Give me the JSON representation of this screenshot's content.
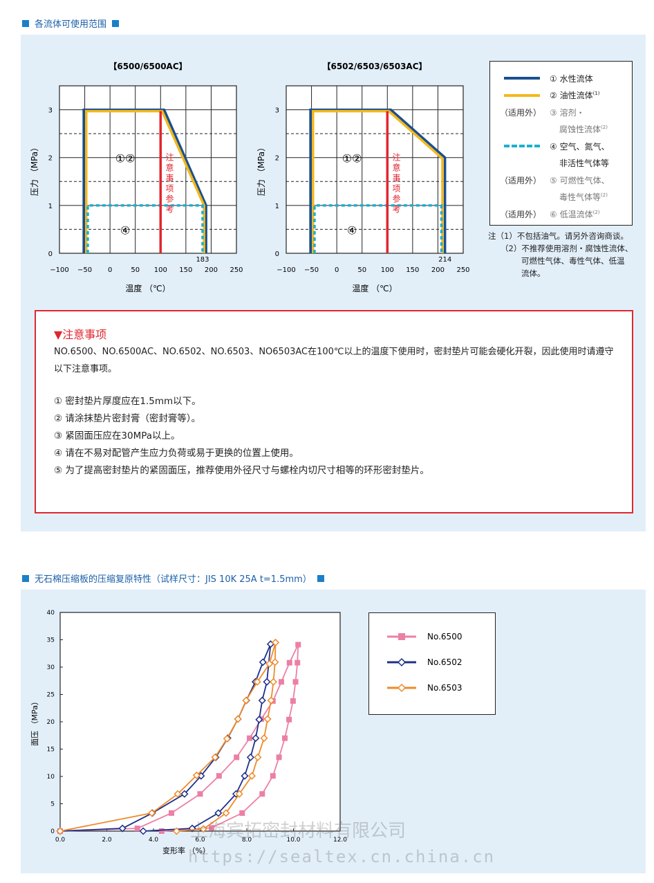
{
  "section1": {
    "title": "各流体可使用范围"
  },
  "legend": {
    "items": [
      {
        "prefix": "",
        "label": "① 水性流体",
        "sup": "",
        "style": "solid",
        "color": "#1a4f8f"
      },
      {
        "prefix": "",
        "label": "② 油性流体",
        "sup": "(1)",
        "style": "solid",
        "color": "#f2b81c"
      },
      {
        "prefix": "（适用外）",
        "label": "③ 溶剂・",
        "sup": "",
        "style": "none"
      },
      {
        "prefix": "",
        "label": "腐蚀性流体",
        "sup": "(2)",
        "style": "none"
      },
      {
        "prefix": "",
        "label": "④ 空气、氮气、",
        "sup": "",
        "style": "dashed",
        "color": "#1cb0cf"
      },
      {
        "prefix": "",
        "label": "非活性气体等",
        "sup": "",
        "style": "none"
      },
      {
        "prefix": "（适用外）",
        "label": "⑤ 可燃性气体、",
        "sup": "",
        "style": "none"
      },
      {
        "prefix": "",
        "label": "毒性气体等",
        "sup": "(2)",
        "style": "none"
      },
      {
        "prefix": "（适用外）",
        "label": "⑥ 低温流体",
        "sup": "(2)",
        "style": "none"
      }
    ]
  },
  "notes": {
    "n1": "注（1）不包括油气。请另外咨询商谈。",
    "n2a": "（2）不推荐使用溶剂・腐蚀性流体、",
    "n2b": "可燃性气体、毒性气体、低温",
    "n2c": "流体。"
  },
  "notice": {
    "title": "▼注意事项",
    "intro": "NO.6500、NO.6500AC、NO.6502、NO.6503、NO6503AC在100℃以上的温度下使用时，密封垫片可能会硬化开裂，因此使用时请遵守以下注意事项。",
    "items": [
      "① 密封垫片厚度应在1.5mm以下。",
      "② 请涂抹垫片密封膏（密封膏等）。",
      "③ 紧固面压应在30MPa以上。",
      "④ 请在不易对配管产生应力负荷或易于更换的位置上使用。",
      "⑤ 为了提高密封垫片的紧固面压，推荐使用外径尺寸与螺栓内切尺寸相等的环形密封垫片。"
    ]
  },
  "section2": {
    "title": "无石棉压缩板的压缩复原特性（试样尺寸：JIS 10K 25A t=1.5mm）"
  },
  "watermark": {
    "cn": "上海宾拓密封材料有限公司",
    "url": "https://sealtex.cn.china.cn"
  },
  "chart_data": [
    {
      "type": "line",
      "title": "【6500/6500AC】",
      "xlabel": "温度 （℃）",
      "ylabel": "压力 （MPa）",
      "xlim": [
        -100,
        250
      ],
      "ylim": [
        0,
        3.5
      ],
      "xticks": [
        -100,
        -50,
        0,
        50,
        100,
        150,
        200,
        250
      ],
      "yticks": [
        0,
        1,
        2,
        3
      ],
      "grid": true,
      "annotations": {
        "region12": "①②",
        "region4": "④",
        "caution": "注意事项参考",
        "end_value": "183"
      },
      "caution_line": {
        "x": 100,
        "color": "#e0262e"
      },
      "series": [
        {
          "id": "water",
          "color": "#1a4f8f",
          "points": [
            [
              -52,
              0
            ],
            [
              -52,
              3
            ],
            [
              107,
              3
            ],
            [
              190,
              1
            ],
            [
              190,
              0
            ]
          ]
        },
        {
          "id": "oil",
          "color": "#f2b81c",
          "points": [
            [
              -47,
              0
            ],
            [
              -47,
              2.97
            ],
            [
              103,
              2.97
            ],
            [
              186,
              1
            ],
            [
              186,
              0
            ]
          ]
        },
        {
          "id": "gas",
          "color": "#1cb0cf",
          "dashed": true,
          "points": [
            [
              -44,
              0
            ],
            [
              -44,
              1
            ],
            [
              183,
              1
            ],
            [
              183,
              0
            ]
          ]
        }
      ]
    },
    {
      "type": "line",
      "title": "【6502/6503/6503AC】",
      "xlabel": "温度 （℃）",
      "ylabel": "压力 （MPa）",
      "xlim": [
        -100,
        250
      ],
      "ylim": [
        0,
        3.5
      ],
      "xticks": [
        -100,
        -50,
        0,
        50,
        100,
        150,
        200,
        250
      ],
      "yticks": [
        0,
        1,
        2,
        3
      ],
      "grid": true,
      "annotations": {
        "region12": "①②",
        "region4": "④",
        "caution": "注意事项参考",
        "end_value": "214"
      },
      "caution_line": {
        "x": 100,
        "color": "#e0262e"
      },
      "series": [
        {
          "id": "water",
          "color": "#1a4f8f",
          "points": [
            [
              -52,
              0
            ],
            [
              -52,
              3
            ],
            [
              107,
              3
            ],
            [
              214,
              2
            ],
            [
              214,
              0
            ]
          ]
        },
        {
          "id": "oil",
          "color": "#f2b81c",
          "points": [
            [
              -47,
              0
            ],
            [
              -47,
              2.97
            ],
            [
              103,
              2.97
            ],
            [
              209,
              1.98
            ],
            [
              209,
              0
            ]
          ]
        },
        {
          "id": "gas",
          "color": "#1cb0cf",
          "dashed": true,
          "points": [
            [
              -44,
              0
            ],
            [
              -44,
              1
            ],
            [
              207,
              1
            ],
            [
              207,
              0
            ]
          ]
        }
      ]
    },
    {
      "type": "line",
      "xlabel": "变形率 （%）",
      "ylabel": "面压 （MPa）",
      "xlim": [
        0,
        12
      ],
      "ylim": [
        0,
        40
      ],
      "xticks": [
        "0.0",
        "2.0",
        "4.0",
        "6.0",
        "8.0",
        "10.0",
        "12.0"
      ],
      "yticks": [
        0,
        5,
        10,
        15,
        20,
        25,
        30,
        35,
        40
      ],
      "grid": false,
      "legend": "right",
      "series": [
        {
          "name": "No.6500",
          "color": "#ec7fa6",
          "marker": "square",
          "points": [
            [
              0,
              0
            ],
            [
              3.31,
              0.5
            ],
            [
              4.77,
              3.3
            ],
            [
              6.0,
              6.8
            ],
            [
              6.81,
              10.1
            ],
            [
              7.56,
              13.5
            ],
            [
              8.12,
              17
            ],
            [
              8.62,
              20.5
            ],
            [
              9.12,
              23.8
            ],
            [
              9.48,
              27.3
            ],
            [
              9.83,
              30.8
            ],
            [
              10.2,
              34.1
            ],
            [
              10.17,
              30.8
            ],
            [
              10.09,
              27.3
            ],
            [
              9.98,
              23.8
            ],
            [
              9.81,
              20.4
            ],
            [
              9.63,
              17
            ],
            [
              9.38,
              13.5
            ],
            [
              9.12,
              10.1
            ],
            [
              8.66,
              6.8
            ],
            [
              7.8,
              3.3
            ],
            [
              6.49,
              0.6
            ],
            [
              4.35,
              0
            ]
          ]
        },
        {
          "name": "No.6502",
          "color": "#1f2f8a",
          "marker": "diamond",
          "points": [
            [
              0,
              0
            ],
            [
              2.67,
              0.5
            ],
            [
              3.95,
              3.3
            ],
            [
              5.33,
              6.8
            ],
            [
              6.04,
              10.1
            ],
            [
              6.67,
              13.5
            ],
            [
              7.18,
              17
            ],
            [
              7.62,
              20.5
            ],
            [
              7.98,
              23.9
            ],
            [
              8.37,
              27.3
            ],
            [
              8.69,
              30.9
            ],
            [
              9.02,
              34.2
            ],
            [
              8.86,
              27.3
            ],
            [
              8.66,
              23.9
            ],
            [
              8.53,
              20.4
            ],
            [
              8.38,
              17
            ],
            [
              8.16,
              13.5
            ],
            [
              7.91,
              10.1
            ],
            [
              7.54,
              6.8
            ],
            [
              6.78,
              3.3
            ],
            [
              5.66,
              0.5
            ],
            [
              3.56,
              0
            ]
          ]
        },
        {
          "name": "No.6503",
          "color": "#ef8a2a",
          "marker": "diamond",
          "points": [
            [
              0,
              0
            ],
            [
              3.93,
              3.3
            ],
            [
              5.04,
              6.8
            ],
            [
              5.85,
              10.2
            ],
            [
              6.64,
              13.5
            ],
            [
              7.15,
              16.9
            ],
            [
              7.62,
              20.5
            ],
            [
              7.97,
              23.9
            ],
            [
              8.45,
              27.3
            ],
            [
              8.97,
              30.6
            ],
            [
              9.23,
              34.5
            ],
            [
              9.21,
              30.9
            ],
            [
              9.14,
              27.3
            ],
            [
              9.04,
              23.9
            ],
            [
              8.89,
              20.5
            ],
            [
              8.74,
              17
            ],
            [
              8.47,
              13.5
            ],
            [
              8.22,
              10.1
            ],
            [
              7.68,
              6.8
            ],
            [
              7.11,
              3.3
            ],
            [
              6.14,
              0.4
            ],
            [
              4.99,
              0
            ]
          ]
        }
      ]
    }
  ]
}
